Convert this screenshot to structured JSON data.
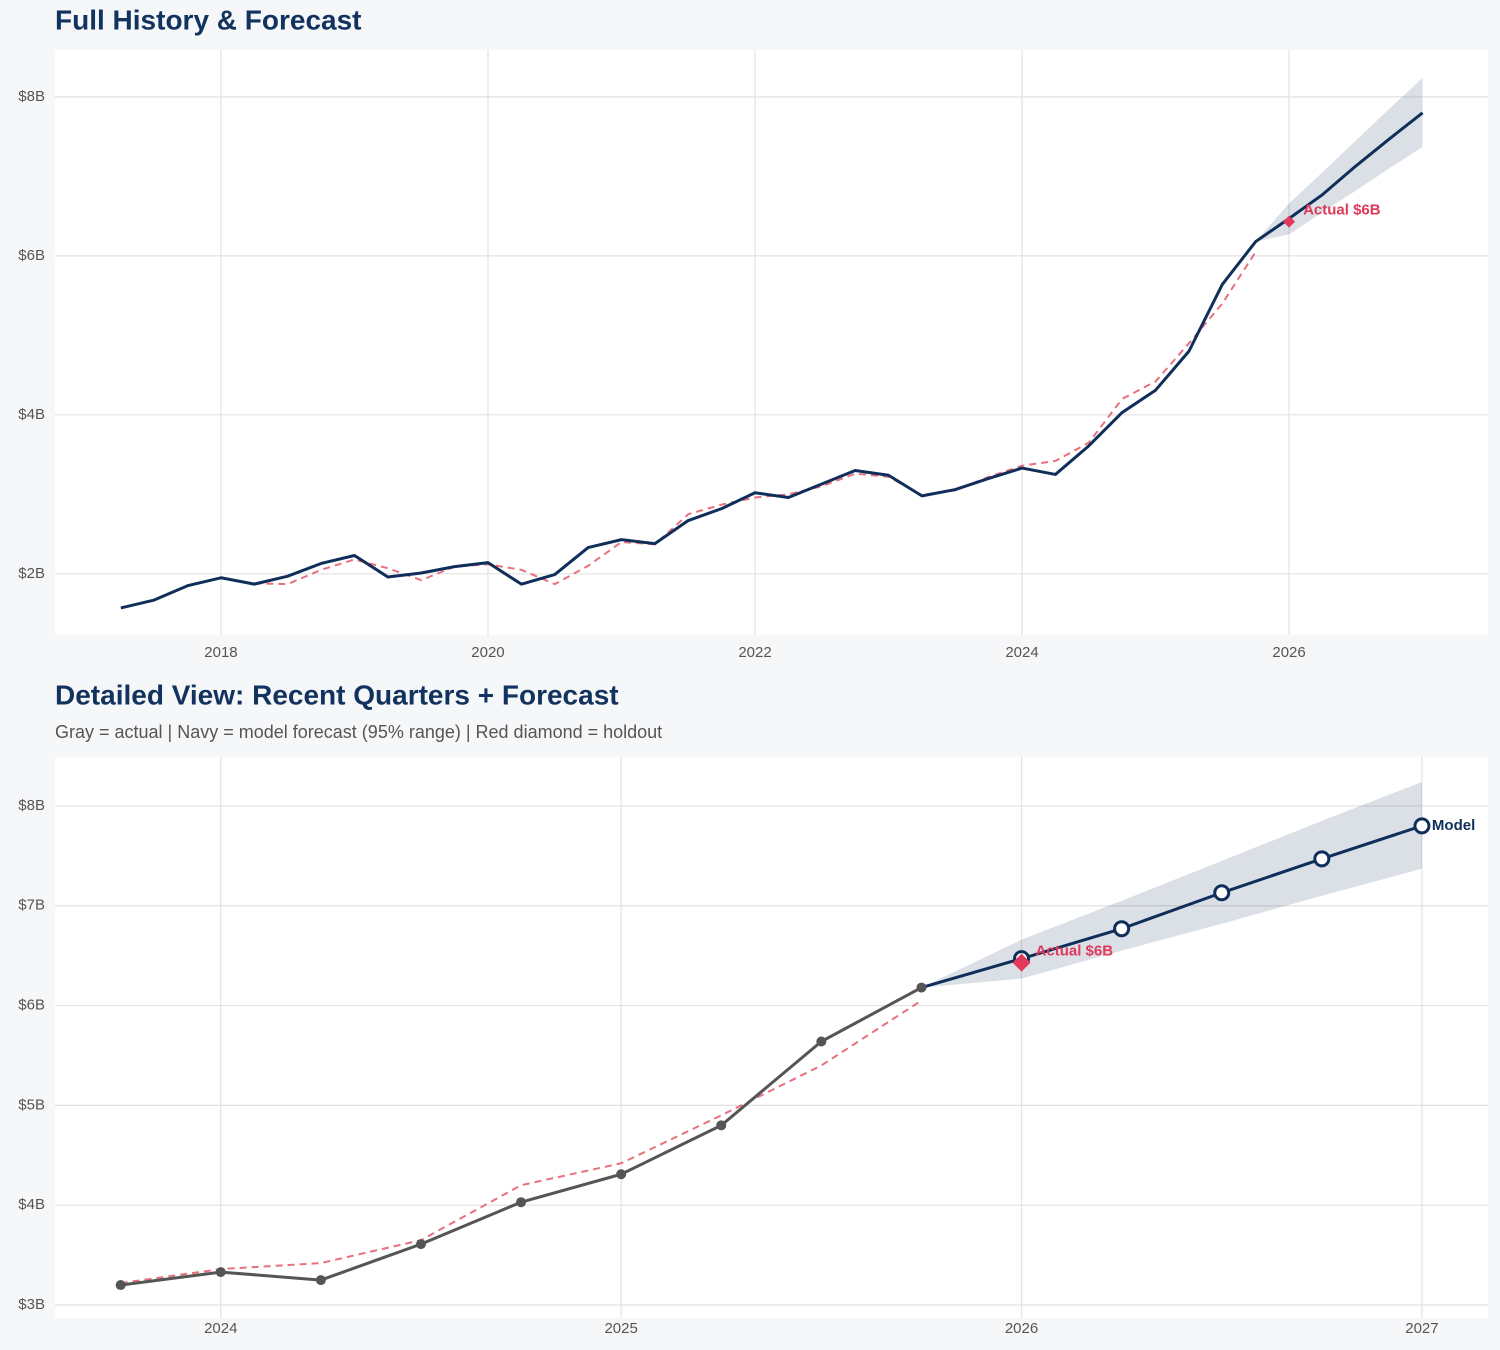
{
  "chart_data": [
    {
      "type": "line",
      "title": "Full History & Forecast",
      "x": [
        2017.25,
        2017.5,
        2017.75,
        2018,
        2018.25,
        2018.5,
        2018.75,
        2019,
        2019.25,
        2019.5,
        2019.75,
        2020,
        2020.25,
        2020.5,
        2020.75,
        2021,
        2021.25,
        2021.5,
        2021.75,
        2022,
        2022.25,
        2022.5,
        2022.75,
        2023,
        2023.25,
        2023.5,
        2023.75,
        2024,
        2024.25,
        2024.5,
        2024.75,
        2025,
        2025.25,
        2025.5,
        2025.75,
        2026,
        2026.25,
        2026.5,
        2026.75,
        2027
      ],
      "band": {
        "color": "#0f2f5a",
        "upper": [
          null,
          null,
          null,
          null,
          null,
          null,
          null,
          null,
          null,
          null,
          null,
          null,
          null,
          null,
          null,
          null,
          null,
          null,
          null,
          null,
          null,
          null,
          null,
          null,
          null,
          null,
          null,
          null,
          null,
          null,
          null,
          null,
          null,
          null,
          6.18,
          6.66,
          7.05,
          7.45,
          7.85,
          8.24
        ],
        "lower": [
          null,
          null,
          null,
          null,
          null,
          null,
          null,
          null,
          null,
          null,
          null,
          null,
          null,
          null,
          null,
          null,
          null,
          null,
          null,
          null,
          null,
          null,
          null,
          null,
          null,
          null,
          null,
          null,
          null,
          null,
          null,
          null,
          null,
          null,
          6.18,
          6.27,
          6.55,
          6.82,
          7.1,
          7.37
        ]
      },
      "series": [
        {
          "color": "#e8717f",
          "dash": true,
          "values": [
            null,
            null,
            null,
            null,
            1.88,
            1.87,
            2.05,
            2.18,
            2.07,
            1.92,
            2.09,
            2.12,
            2.05,
            1.87,
            2.1,
            2.4,
            2.37,
            2.75,
            2.87,
            2.96,
            3.0,
            3.1,
            3.26,
            3.22,
            2.99,
            3.05,
            3.22,
            3.36,
            3.42,
            3.65,
            4.2,
            4.42,
            4.9,
            5.4,
            6.05,
            null,
            null,
            null,
            null,
            null
          ]
        },
        {
          "color": "#0f2f5a",
          "values": [
            1.57,
            1.67,
            1.85,
            1.95,
            1.87,
            1.97,
            2.13,
            2.23,
            1.96,
            2.01,
            2.09,
            2.14,
            1.87,
            1.99,
            2.33,
            2.43,
            2.38,
            2.67,
            2.82,
            3.02,
            2.96,
            3.13,
            3.3,
            3.24,
            2.98,
            3.06,
            3.2,
            3.33,
            3.25,
            3.61,
            4.03,
            4.31,
            4.8,
            5.64,
            6.18,
            6.47,
            6.77,
            7.13,
            7.47,
            7.8
          ]
        }
      ],
      "points": [
        {
          "x": 2026,
          "value": 6.43,
          "label": "Actual $6B",
          "color": "#e0395a",
          "marker": "diamond"
        }
      ],
      "xlim": [
        2016.757,
        2027.49
      ],
      "xticks": [
        2018,
        2020,
        2022,
        2024,
        2026
      ],
      "ylim": [
        1.23,
        8.59
      ],
      "yticks": [
        {
          "value": 2,
          "label": "$2B"
        },
        {
          "value": 4,
          "label": "$4B"
        },
        {
          "value": 6,
          "label": "$6B"
        },
        {
          "value": 8,
          "label": "$8B"
        }
      ],
      "grid": true
    },
    {
      "type": "line",
      "title": "Detailed View: Recent Quarters + Forecast",
      "subtitle": "Gray = actual  |  Navy = model forecast (95% range)  |  Red diamond = holdout",
      "x": [
        2023.75,
        2024,
        2024.25,
        2024.5,
        2024.75,
        2025,
        2025.25,
        2025.5,
        2025.75,
        2026,
        2026.25,
        2026.5,
        2026.75,
        2027
      ],
      "band": {
        "color": "#0f2f5a",
        "upper": [
          null,
          null,
          null,
          null,
          null,
          null,
          null,
          null,
          6.18,
          6.66,
          7.05,
          7.45,
          7.85,
          8.24
        ],
        "lower": [
          null,
          null,
          null,
          null,
          null,
          null,
          null,
          null,
          6.18,
          6.27,
          6.55,
          6.82,
          7.1,
          7.37
        ]
      },
      "series": [
        {
          "color": "#e8717f",
          "dash": true,
          "values": [
            3.22,
            3.36,
            3.42,
            3.65,
            4.2,
            4.42,
            4.9,
            5.4,
            6.05,
            null,
            null,
            null,
            null,
            null
          ]
        },
        {
          "color": "#0f2f5a",
          "marker": "open",
          "end_label": "Model",
          "values": [
            null,
            null,
            null,
            null,
            null,
            null,
            null,
            null,
            6.18,
            6.47,
            6.77,
            7.13,
            7.47,
            7.8
          ]
        },
        {
          "color": "#555555",
          "marker": "dot",
          "values": [
            3.2,
            3.33,
            3.25,
            3.61,
            4.03,
            4.31,
            4.8,
            5.64,
            6.18,
            null,
            null,
            null,
            null,
            null
          ]
        }
      ],
      "points": [
        {
          "x": 2026,
          "value": 6.43,
          "label": "Actual $6B",
          "color": "#e0395a",
          "marker": "diamond"
        }
      ],
      "xlim": [
        2023.586,
        2027.165
      ],
      "xticks": [
        2024,
        2025,
        2026,
        2027
      ],
      "ylim": [
        2.87,
        8.49
      ],
      "yticks": [
        {
          "value": 3,
          "label": "$3B"
        },
        {
          "value": 4,
          "label": "$4B"
        },
        {
          "value": 5,
          "label": "$5B"
        },
        {
          "value": 6,
          "label": "$6B"
        },
        {
          "value": 7,
          "label": "$7B"
        },
        {
          "value": 8,
          "label": "$8B"
        }
      ],
      "grid": true
    }
  ]
}
